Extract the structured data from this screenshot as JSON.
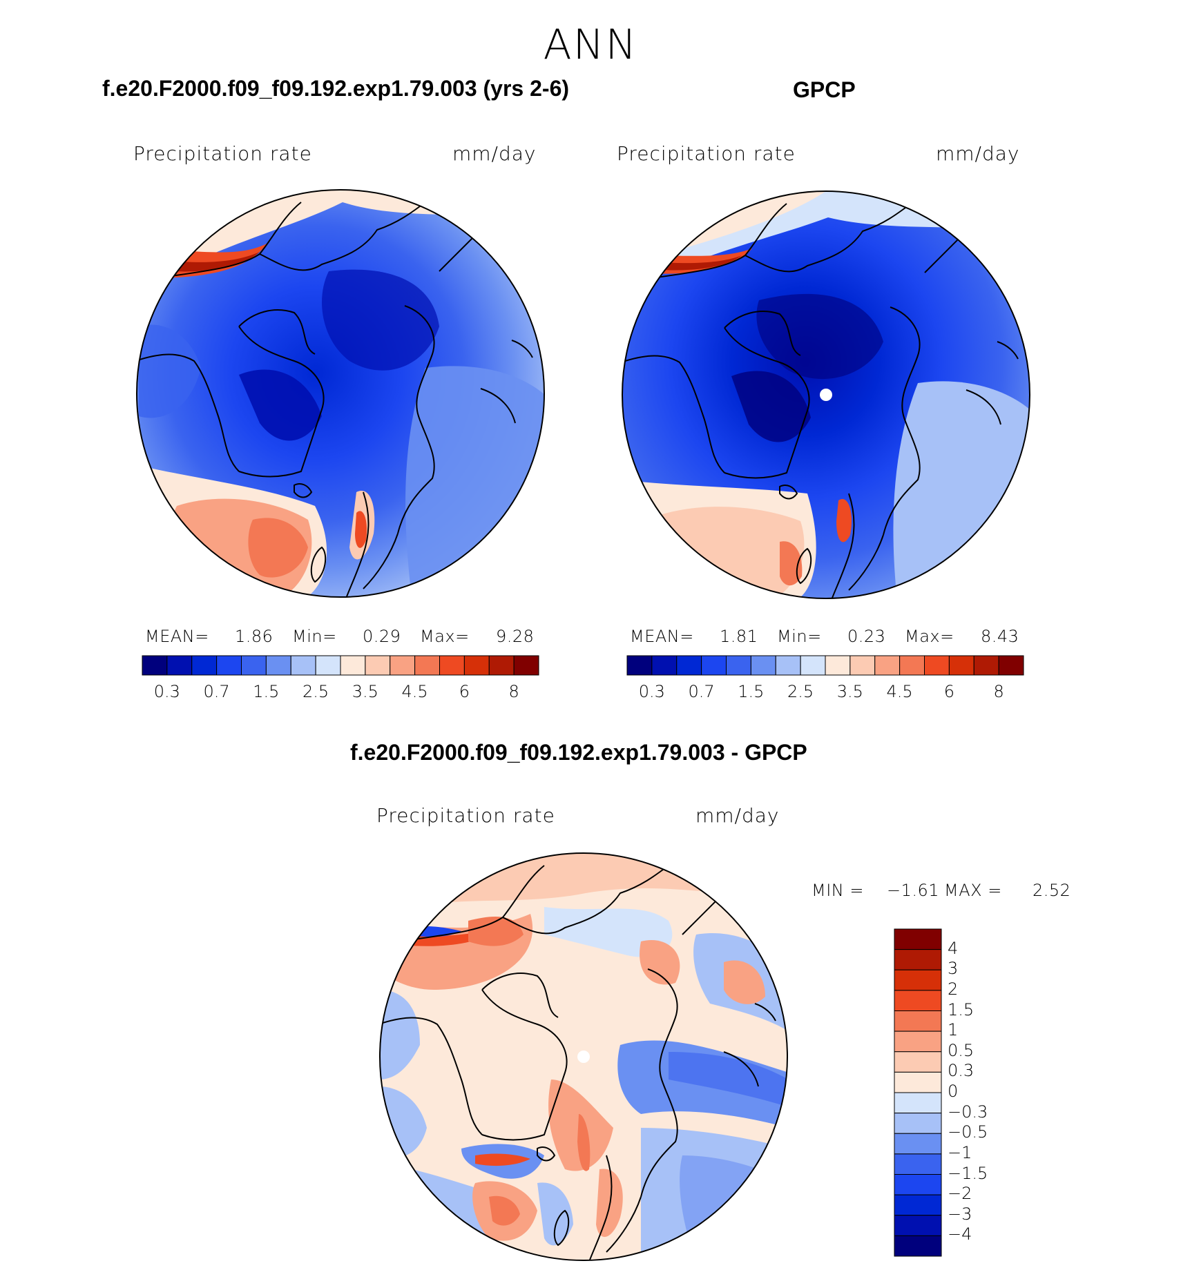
{
  "season": "ANN",
  "panels": [
    {
      "title": "f.e20.F2000.f09_f09.192.exp1.79.003 (yrs 2-6)",
      "variable": "Precipitation rate",
      "units": "mm/day",
      "stats": {
        "mean_label": "MEAN=",
        "mean": "1.86",
        "min_label": "Min=",
        "min": "0.29",
        "max_label": "Max=",
        "max": "9.28"
      }
    },
    {
      "title": "GPCP",
      "variable": "Precipitation rate",
      "units": "mm/day",
      "stats": {
        "mean_label": "MEAN=",
        "mean": "1.81",
        "min_label": "Min=",
        "min": "0.23",
        "max_label": "Max=",
        "max": "8.43"
      }
    }
  ],
  "diff_panel": {
    "title": "f.e20.F2000.f09_f09.192.exp1.79.003 - GPCP",
    "variable": "Precipitation rate",
    "units": "mm/day",
    "min_label": "MIN =",
    "min": "−1.61",
    "max_label": "MAX =",
    "max": "2.52"
  },
  "colorbar": {
    "colors": [
      "#00007d",
      "#0010b0",
      "#0028d4",
      "#1c46f0",
      "#3a63ef",
      "#6a90f2",
      "#a7c1f7",
      "#d4e4fb",
      "#fde9da",
      "#fccbb3",
      "#f9a283",
      "#f37854",
      "#ee4a22",
      "#d63008",
      "#af1a04",
      "#800000"
    ],
    "labels": [
      "0.3",
      "0.7",
      "1.5",
      "2.5",
      "3.5",
      "4.5",
      "6",
      "8"
    ]
  },
  "diff_colorbar": {
    "colors": [
      "#00007d",
      "#0010b0",
      "#0028d4",
      "#1c46f0",
      "#3a63ef",
      "#6a90f2",
      "#a7c1f7",
      "#d4e4fb",
      "#fde9da",
      "#fccbb3",
      "#f9a283",
      "#f37854",
      "#ee4a22",
      "#d63008",
      "#af1a04",
      "#800000"
    ],
    "labels": [
      "4",
      "3",
      "2",
      "1.5",
      "1",
      "0.5",
      "0.3",
      "0",
      "−0.3",
      "−0.5",
      "−1",
      "−1.5",
      "−2",
      "−3",
      "−4"
    ]
  }
}
